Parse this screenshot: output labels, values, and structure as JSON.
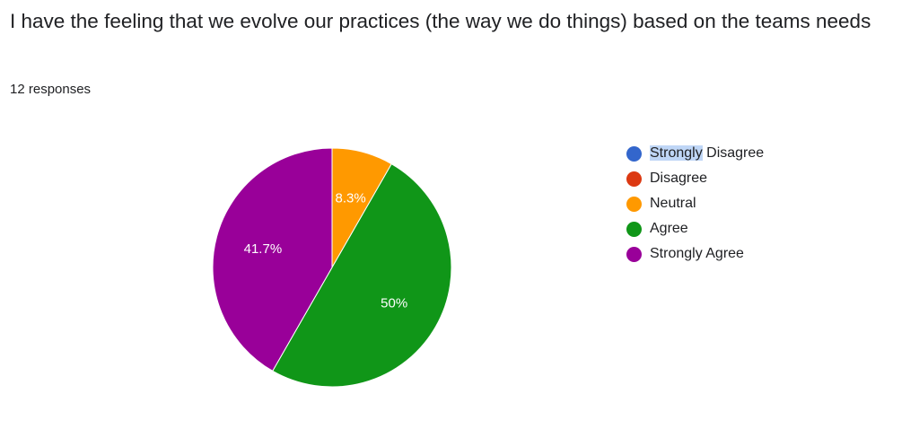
{
  "question": {
    "title": "I have the feeling that we evolve our practices (the way we do things) based on the teams needs",
    "responses": "12 responses"
  },
  "legend": {
    "highlighted_text": "Strongly",
    "items": [
      {
        "label": "Strongly Disagree",
        "color": "#3366cc"
      },
      {
        "label": "Disagree",
        "color": "#dc3912"
      },
      {
        "label": "Neutral",
        "color": "#ff9900"
      },
      {
        "label": "Agree",
        "color": "#109618"
      },
      {
        "label": "Strongly Agree",
        "color": "#990099"
      }
    ]
  },
  "chart_data": {
    "type": "pie",
    "title": "I have the feeling that we evolve our practices (the way we do things) based on the teams needs",
    "categories": [
      "Strongly Disagree",
      "Disagree",
      "Neutral",
      "Agree",
      "Strongly Agree"
    ],
    "values": [
      0,
      0,
      8.3,
      50,
      41.7
    ],
    "value_labels": [
      "",
      "",
      "8.3%",
      "50%",
      "41.7%"
    ],
    "counts": [
      0,
      0,
      1,
      6,
      5
    ],
    "colors": [
      "#3366cc",
      "#dc3912",
      "#ff9900",
      "#109618",
      "#990099"
    ],
    "start_angle_deg": 90,
    "direction": "clockwise",
    "legend_position": "right"
  }
}
